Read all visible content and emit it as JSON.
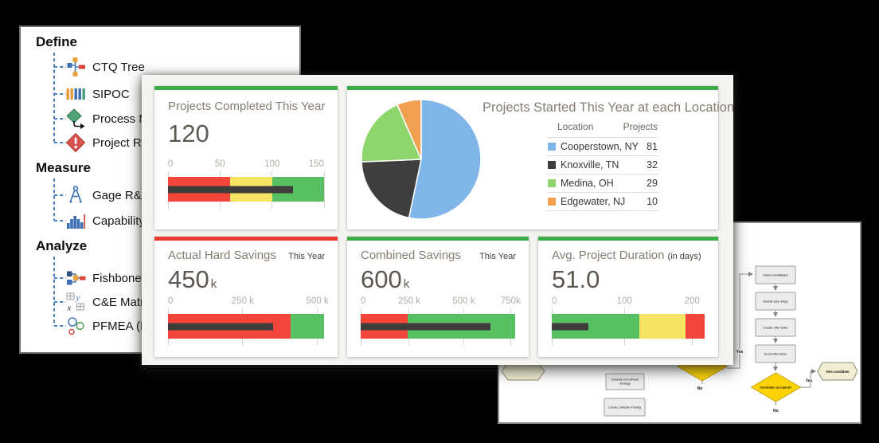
{
  "colors": {
    "accent_green": "#3cae49",
    "accent_red": "#e83a2e",
    "bullet_red": "#f4453a",
    "bullet_yellow": "#f6e263",
    "bullet_green": "#57c063",
    "bullet_bar": "#3f3d3b",
    "pie_blue": "#7fb5e9",
    "pie_dark": "#3e3e3e",
    "pie_green": "#8ed66b",
    "pie_orange": "#efa050",
    "tree_line_blue": "#4e7fc0",
    "flow_diamond_yellow": "#fdd306",
    "flow_hexagon_cream": "#f2eed4"
  },
  "left_panel": {
    "sections": [
      {
        "title": "Define",
        "items": [
          {
            "label": "CTQ Tree",
            "icon": "ctq-tree-icon"
          },
          {
            "label": "SIPOC",
            "icon": "sipoc-icon"
          },
          {
            "label": "Process M",
            "icon": "process-map-icon"
          },
          {
            "label": "Project R",
            "icon": "project-risk-icon"
          }
        ]
      },
      {
        "title": "Measure",
        "items": [
          {
            "label": "Gage R&R",
            "icon": "gage-rr-icon"
          },
          {
            "label": "Capability",
            "icon": "capability-icon"
          }
        ]
      },
      {
        "title": "Analyze",
        "items": [
          {
            "label": "Fishbone",
            "icon": "fishbone-icon"
          },
          {
            "label": "C&E Matr",
            "icon": "ce-matrix-icon"
          },
          {
            "label": "PFMEA (F",
            "icon": "pfmea-icon"
          }
        ]
      }
    ]
  },
  "dashboard": {
    "cards": [
      {
        "title": "Projects Completed This Year",
        "value": "120",
        "suffix": "",
        "accent": "#3cae49",
        "bullet": {
          "ticks": [
            "0",
            "50",
            "100",
            "150"
          ],
          "tick_pcts": [
            0,
            33.3,
            66.7,
            100
          ],
          "segments": [
            {
              "name": "red",
              "color": "#f4453a",
              "pct": 40
            },
            {
              "name": "yellow",
              "color": "#f6e263",
              "pct": 26.7
            },
            {
              "name": "green",
              "color": "#57c063",
              "pct": 33.3
            }
          ],
          "bar_pct": 80,
          "bar_color": "#3f3d3b"
        }
      },
      {
        "title": "Projects Started This Year at each Location",
        "accent": "#3cae49",
        "legend": {
          "headers": [
            "Location",
            "Projects"
          ],
          "rows": [
            {
              "label": "Cooperstown, NY",
              "value": "81",
              "color": "#7fb5e9"
            },
            {
              "label": "Knoxville, TN",
              "value": "32",
              "color": "#3e3e3e"
            },
            {
              "label": "Medina, OH",
              "value": "29",
              "color": "#8ed66b"
            },
            {
              "label": "Edgewater, NJ",
              "value": "10",
              "color": "#efa050"
            }
          ]
        },
        "pie": {
          "values": [
            81,
            32,
            29,
            10
          ],
          "colors": [
            "#7fb5e9",
            "#3e3e3e",
            "#8ed66b",
            "#efa050"
          ]
        }
      },
      {
        "title": "Actual Hard Savings",
        "badge": "This Year",
        "value": "450",
        "suffix": "k",
        "accent": "#e83a2e",
        "bullet": {
          "ticks": [
            "0",
            "250 k",
            "500 k"
          ],
          "tick_pcts": [
            0,
            47.9,
            95.7
          ],
          "segments": [
            {
              "name": "red",
              "color": "#f4453a",
              "pct": 78.7
            },
            {
              "name": "green",
              "color": "#57c063",
              "pct": 21.3
            }
          ],
          "bar_pct": 67.6,
          "bar_color": "#3f3d3b"
        }
      },
      {
        "title": "Combined Savings",
        "badge": "This Year",
        "value": "600",
        "suffix": "k",
        "accent": "#3cae49",
        "bullet": {
          "ticks": [
            "0",
            "250 k",
            "500 k",
            "750k"
          ],
          "tick_pcts": [
            0,
            31.4,
            66.7,
            97.1
          ],
          "segments": [
            {
              "name": "red",
              "color": "#f4453a",
              "pct": 30.3
            },
            {
              "name": "green",
              "color": "#57c063",
              "pct": 69.7
            }
          ],
          "bar_pct": 84,
          "bar_color": "#3f3d3b"
        }
      },
      {
        "title": "Avg. Project Duration",
        "title_suffix": "(in days)",
        "value": "51.0",
        "suffix": "",
        "accent": "#3cae49",
        "bullet": {
          "ticks": [
            "0",
            "100",
            "200"
          ],
          "tick_pcts": [
            0,
            47.5,
            91.8
          ],
          "segments": [
            {
              "name": "green",
              "color": "#57c063",
              "pct": 57.4
            },
            {
              "name": "yellow",
              "color": "#f6e263",
              "pct": 30.3
            },
            {
              "name": "red",
              "color": "#f4453a",
              "pct": 12.3
            }
          ],
          "bar_pct": 23.8,
          "bar_color": "#3f3d3b"
        }
      }
    ]
  },
  "flowchart": {
    "steps": [
      "Select candidates",
      "Decide pay range",
      "Create offer letter",
      "Send offer letter"
    ],
    "decision": "Candidate accepted?",
    "result": "Hire candidate",
    "yes_label": "Yes",
    "no_label": "No",
    "side_steps": [
      "Develop recruitment strategy",
      "Create LinkedIn Posting"
    ]
  },
  "chart_data": [
    {
      "type": "bar",
      "subtype": "bullet-gauge",
      "title": "Projects Completed This Year",
      "value": 120,
      "axis_ticks": [
        0,
        50,
        100,
        150
      ],
      "ranges": {
        "red": [
          0,
          60
        ],
        "yellow": [
          60,
          100
        ],
        "green": [
          100,
          150
        ]
      }
    },
    {
      "type": "pie",
      "title": "Projects Started This Year at each Location",
      "categories": [
        "Cooperstown, NY",
        "Knoxville, TN",
        "Medina, OH",
        "Edgewater, NJ"
      ],
      "values": [
        81,
        32,
        29,
        10
      ],
      "legend_position": "right"
    },
    {
      "type": "bar",
      "subtype": "bullet-gauge",
      "title": "Actual Hard Savings This Year",
      "value": 450000,
      "axis_ticks": [
        0,
        250000,
        500000
      ],
      "ranges": {
        "red": [
          0,
          410000
        ],
        "green": [
          410000,
          520000
        ]
      }
    },
    {
      "type": "bar",
      "subtype": "bullet-gauge",
      "title": "Combined Savings This Year",
      "value": 600000,
      "axis_ticks": [
        0,
        250000,
        500000,
        750000
      ],
      "ranges": {
        "red": [
          0,
          250000
        ],
        "green": [
          250000,
          770000
        ]
      }
    },
    {
      "type": "bar",
      "subtype": "bullet-gauge",
      "title": "Avg. Project Duration (in days)",
      "value": 51.0,
      "axis_ticks": [
        0,
        100,
        200
      ],
      "ranges": {
        "green": [
          0,
          120
        ],
        "yellow": [
          120,
          185
        ],
        "red": [
          185,
          210
        ]
      }
    }
  ]
}
